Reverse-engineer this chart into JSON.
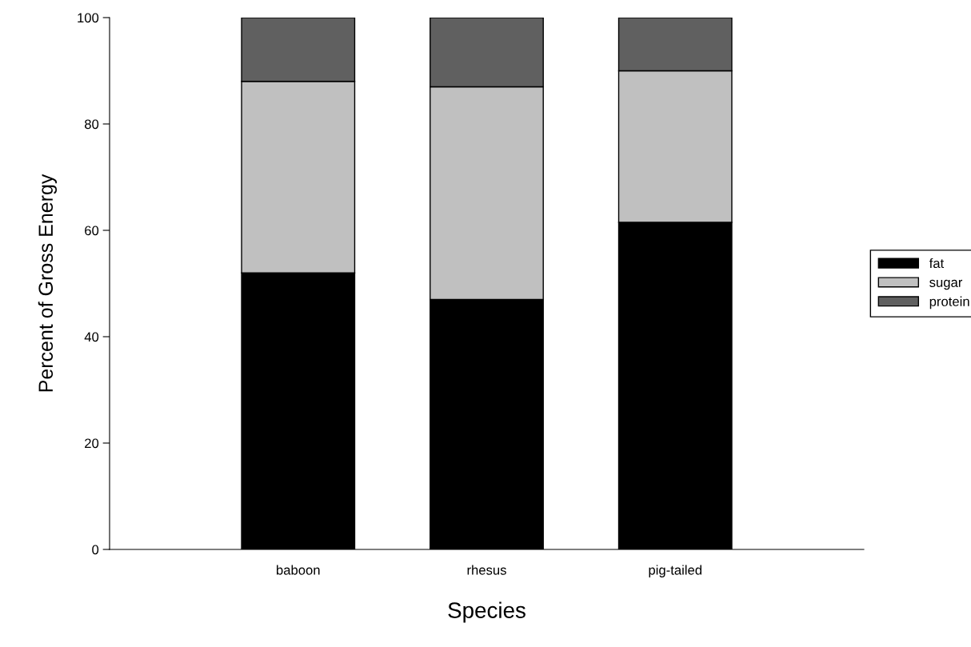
{
  "chart_data": {
    "type": "bar",
    "stacked": true,
    "xlabel": "Species",
    "ylabel": "Percent of Gross Energy",
    "categories": [
      "baboon",
      "rhesus",
      "pig-tailed"
    ],
    "series": [
      {
        "name": "fat",
        "color": "#000000",
        "values": [
          52,
          47,
          61.5
        ]
      },
      {
        "name": "sugar",
        "color": "#c0c0c0",
        "values": [
          36,
          40,
          28.5
        ]
      },
      {
        "name": "protein",
        "color": "#606060",
        "values": [
          12,
          13,
          10
        ]
      }
    ],
    "ylim": [
      0,
      100
    ],
    "yticks": [
      0,
      20,
      40,
      60,
      80,
      100
    ],
    "grid": false,
    "legend": "right"
  }
}
